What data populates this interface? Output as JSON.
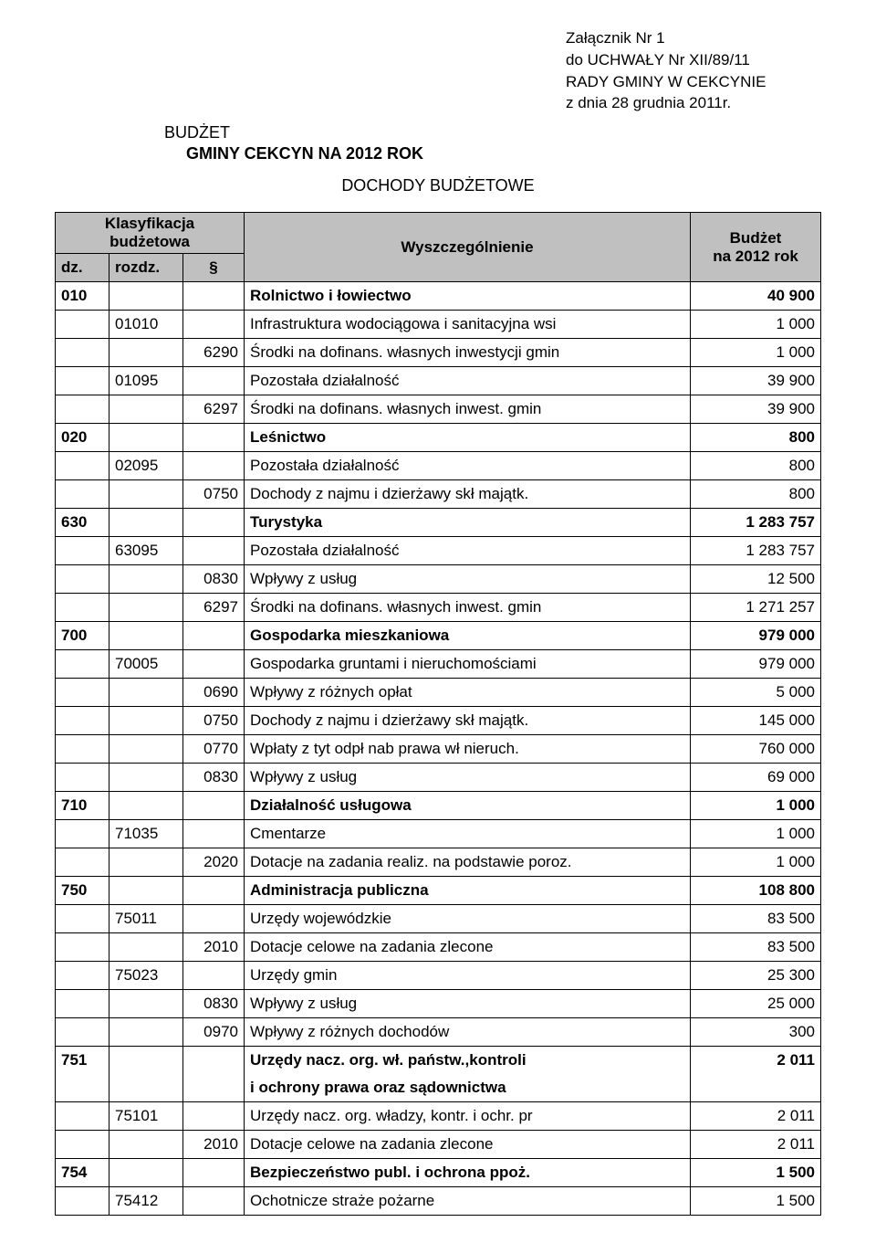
{
  "attachment": {
    "line1": "Załącznik Nr 1",
    "line2": "do UCHWAŁY Nr XII/89/11",
    "line3": "RADY GMINY W CEKCYNIE",
    "line4": "z dnia 28 grudnia 2011r."
  },
  "title": {
    "line1": "BUDŻET",
    "line2": "GMINY CEKCYN NA 2012 ROK",
    "subtitle": "DOCHODY BUDŻETOWE"
  },
  "header": {
    "klasyfikacja": "Klasyfikacja",
    "budzetowa": "budżetowa",
    "dz": "dz.",
    "rozdz": "rozdz.",
    "par": "§",
    "wyszcz": "Wyszczególnienie",
    "budzet": "Budżet",
    "narok": "na 2012 rok"
  },
  "rows": [
    {
      "dz": "010",
      "rozdz": "",
      "par": "",
      "desc": "Rolnictwo i łowiectwo",
      "val": "40 900",
      "bold": true
    },
    {
      "dz": "",
      "rozdz": "01010",
      "par": "",
      "desc": "Infrastruktura wodociągowa i sanitacyjna wsi",
      "val": "1 000",
      "bold": false
    },
    {
      "dz": "",
      "rozdz": "",
      "par": "6290",
      "desc": "Środki na dofinans. własnych inwestycji gmin",
      "val": "1 000",
      "bold": false
    },
    {
      "dz": "",
      "rozdz": "01095",
      "par": "",
      "desc": "Pozostała działalność",
      "val": "39 900",
      "bold": false
    },
    {
      "dz": "",
      "rozdz": "",
      "par": "6297",
      "desc": "Środki na dofinans. własnych inwest. gmin",
      "val": "39 900",
      "bold": false
    },
    {
      "dz": "020",
      "rozdz": "",
      "par": "",
      "desc": "Leśnictwo",
      "val": "800",
      "bold": true
    },
    {
      "dz": "",
      "rozdz": "02095",
      "par": "",
      "desc": "Pozostała działalność",
      "val": "800",
      "bold": false
    },
    {
      "dz": "",
      "rozdz": "",
      "par": "0750",
      "desc": "Dochody z najmu i dzierżawy skł majątk.",
      "val": "800",
      "bold": false
    },
    {
      "dz": "630",
      "rozdz": "",
      "par": "",
      "desc": "Turystyka",
      "val": "1 283 757",
      "bold": true
    },
    {
      "dz": "",
      "rozdz": "63095",
      "par": "",
      "desc": "Pozostała działalność",
      "val": "1 283 757",
      "bold": false
    },
    {
      "dz": "",
      "rozdz": "",
      "par": "0830",
      "desc": "Wpływy z usług",
      "val": "12 500",
      "bold": false
    },
    {
      "dz": "",
      "rozdz": "",
      "par": "6297",
      "desc": "Środki na dofinans. własnych inwest. gmin",
      "val": "1 271 257",
      "bold": false
    },
    {
      "dz": "700",
      "rozdz": "",
      "par": "",
      "desc": "Gospodarka mieszkaniowa",
      "val": "979 000",
      "bold": true
    },
    {
      "dz": "",
      "rozdz": "70005",
      "par": "",
      "desc": "Gospodarka gruntami i nieruchomościami",
      "val": "979 000",
      "bold": false
    },
    {
      "dz": "",
      "rozdz": "",
      "par": "0690",
      "desc": "Wpływy z różnych opłat",
      "val": "5 000",
      "bold": false
    },
    {
      "dz": "",
      "rozdz": "",
      "par": "0750",
      "desc": "Dochody z najmu i dzierżawy skł majątk.",
      "val": "145 000",
      "bold": false
    },
    {
      "dz": "",
      "rozdz": "",
      "par": "0770",
      "desc": "Wpłaty z tyt odpł nab prawa wł nieruch.",
      "val": "760 000",
      "bold": false
    },
    {
      "dz": "",
      "rozdz": "",
      "par": "0830",
      "desc": "Wpływy z usług",
      "val": "69 000",
      "bold": false
    },
    {
      "dz": "710",
      "rozdz": "",
      "par": "",
      "desc": "Działalność usługowa",
      "val": "1 000",
      "bold": true
    },
    {
      "dz": "",
      "rozdz": "71035",
      "par": "",
      "desc": "Cmentarze",
      "val": "1 000",
      "bold": false
    },
    {
      "dz": "",
      "rozdz": "",
      "par": "2020",
      "desc": "Dotacje na zadania realiz. na podstawie poroz.",
      "val": "1 000",
      "bold": false
    },
    {
      "dz": "750",
      "rozdz": "",
      "par": "",
      "desc": "Administracja publiczna",
      "val": "108 800",
      "bold": true
    },
    {
      "dz": "",
      "rozdz": "75011",
      "par": "",
      "desc": "Urzędy wojewódzkie",
      "val": "83 500",
      "bold": false
    },
    {
      "dz": "",
      "rozdz": "",
      "par": "2010",
      "desc": "Dotacje celowe na zadania zlecone",
      "val": "83 500",
      "bold": false
    },
    {
      "dz": "",
      "rozdz": "75023",
      "par": "",
      "desc": "Urzędy gmin",
      "val": "25 300",
      "bold": false
    },
    {
      "dz": "",
      "rozdz": "",
      "par": "0830",
      "desc": "Wpływy z usług",
      "val": "25 000",
      "bold": false
    },
    {
      "dz": "",
      "rozdz": "",
      "par": "0970",
      "desc": "Wpływy z różnych dochodów",
      "val": "300",
      "bold": false
    },
    {
      "dz": "751",
      "rozdz": "",
      "par": "",
      "desc": "Urzędy nacz. org. wł. państw.,kontroli",
      "val": "2 011",
      "bold": true,
      "hasCont": true
    },
    {
      "dz": "",
      "rozdz": "",
      "par": "",
      "desc": "i ochrony prawa oraz sądownictwa",
      "val": "",
      "bold": true,
      "cont": true
    },
    {
      "dz": "",
      "rozdz": "75101",
      "par": "",
      "desc": "Urzędy nacz. org. władzy, kontr. i ochr. pr",
      "val": "2 011",
      "bold": false
    },
    {
      "dz": "",
      "rozdz": "",
      "par": "2010",
      "desc": "Dotacje celowe na zadania zlecone",
      "val": "2 011",
      "bold": false
    },
    {
      "dz": "754",
      "rozdz": "",
      "par": "",
      "desc": "Bezpieczeństwo publ. i ochrona ppoż.",
      "val": "1 500",
      "bold": true
    },
    {
      "dz": "",
      "rozdz": "75412",
      "par": "",
      "desc": "Ochotnicze straże pożarne",
      "val": "1 500",
      "bold": false
    }
  ]
}
